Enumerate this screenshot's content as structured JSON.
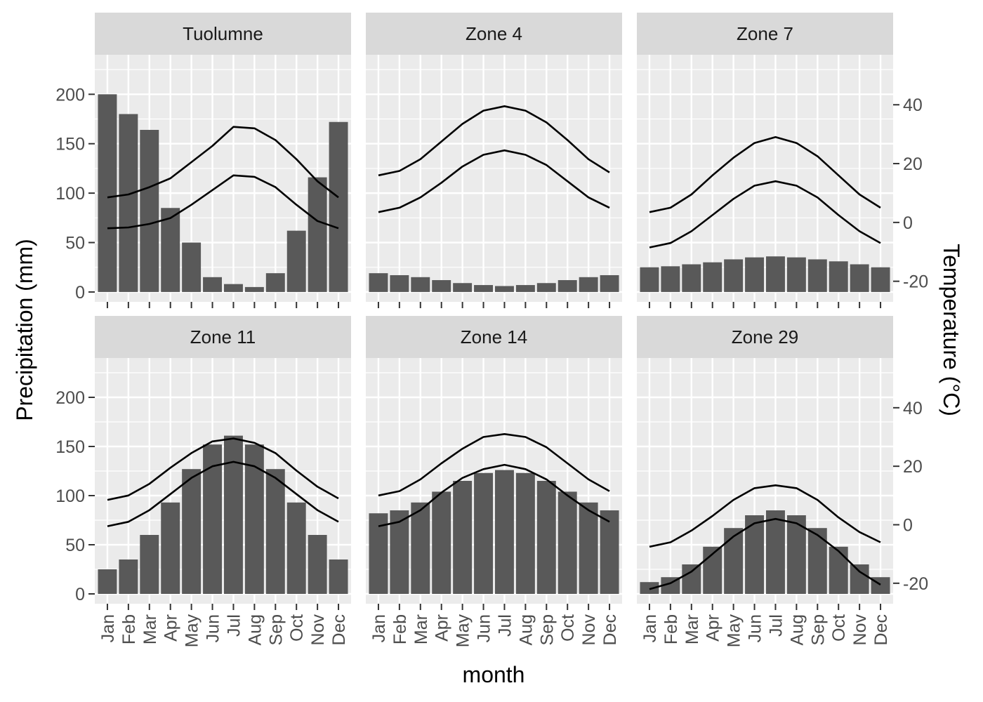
{
  "chart_data": {
    "type": "bar+line",
    "xlabel": "month",
    "ylabel": "Precipitation (mm)",
    "y2label": "Temperature (°C)",
    "months": [
      "Jan",
      "Feb",
      "Mar",
      "Apr",
      "May",
      "Jun",
      "Jul",
      "Aug",
      "Sep",
      "Oct",
      "Nov",
      "Dec"
    ],
    "ylim": [
      -10,
      240
    ],
    "yticks": [
      0,
      50,
      100,
      150,
      200
    ],
    "y2lim": [
      -27,
      57
    ],
    "y2ticks": [
      -20,
      0,
      20,
      40
    ],
    "facets": [
      {
        "name": "Tuolumne",
        "precip": [
          200,
          180,
          164,
          85,
          50,
          15,
          8,
          5,
          19,
          62,
          116,
          172
        ],
        "temp_max": [
          8.5,
          9.5,
          12,
          15,
          20.5,
          26,
          32.5,
          32,
          28,
          21.5,
          14,
          8.5
        ],
        "temp_min": [
          -2,
          -1.7,
          -0.5,
          1.5,
          6,
          11,
          16,
          15.5,
          12,
          6,
          0.5,
          -2
        ]
      },
      {
        "name": "Zone 4",
        "precip": [
          19,
          17,
          15,
          12,
          9,
          7,
          6,
          7,
          9,
          12,
          15,
          17
        ],
        "temp_max": [
          16,
          17.5,
          21.5,
          27.5,
          33.5,
          38,
          39.5,
          38,
          34,
          28,
          21.5,
          17
        ],
        "temp_min": [
          3.5,
          5,
          8.5,
          13.5,
          19,
          23,
          24.5,
          23,
          19.5,
          14,
          8.5,
          5
        ]
      },
      {
        "name": "Zone 7",
        "precip": [
          25,
          26,
          28,
          30,
          33,
          35,
          36,
          35,
          33,
          31,
          28,
          25
        ],
        "temp_max": [
          3.5,
          5,
          9.5,
          16,
          22,
          27,
          29,
          27,
          22.5,
          16,
          9.5,
          5
        ],
        "temp_min": [
          -8.5,
          -7,
          -3,
          2.5,
          8,
          12.5,
          14,
          12.5,
          8.5,
          2.5,
          -3,
          -7
        ]
      },
      {
        "name": "Zone 11",
        "precip": [
          25,
          35,
          60,
          93,
          127,
          152,
          161,
          152,
          127,
          93,
          60,
          35
        ],
        "temp_max": [
          8.5,
          10,
          14,
          19.5,
          24.5,
          28.5,
          29.5,
          28,
          24.5,
          18.5,
          13,
          9
        ],
        "temp_min": [
          -0.5,
          1,
          5,
          10.5,
          16,
          20,
          21.5,
          20,
          16,
          10.5,
          5,
          1
        ]
      },
      {
        "name": "Zone 14",
        "precip": [
          82,
          85,
          93,
          104,
          115,
          123,
          126,
          123,
          115,
          104,
          93,
          85
        ],
        "temp_max": [
          10,
          11.5,
          15.5,
          21,
          26,
          30,
          31,
          30,
          26.5,
          21,
          15.5,
          11.5
        ],
        "temp_min": [
          -0.5,
          1,
          5,
          11,
          16,
          19,
          20.5,
          19,
          15.5,
          10,
          5,
          1
        ]
      },
      {
        "name": "Zone 29",
        "precip": [
          12,
          17,
          30,
          48,
          67,
          80,
          85,
          80,
          67,
          48,
          30,
          17
        ],
        "temp_max": [
          -7.5,
          -6,
          -2,
          3,
          8.5,
          12.5,
          13.5,
          12.5,
          8.5,
          2.5,
          -2.5,
          -6
        ],
        "temp_min": [
          -22,
          -20,
          -16,
          -10,
          -4,
          0.5,
          2,
          0.5,
          -3.5,
          -9,
          -16,
          -20.5
        ]
      }
    ],
    "colors": {
      "bar": "#595959",
      "line": "#000000",
      "panel": "#ebebeb",
      "strip": "#d9d9d9",
      "grid": "#ffffff"
    }
  }
}
